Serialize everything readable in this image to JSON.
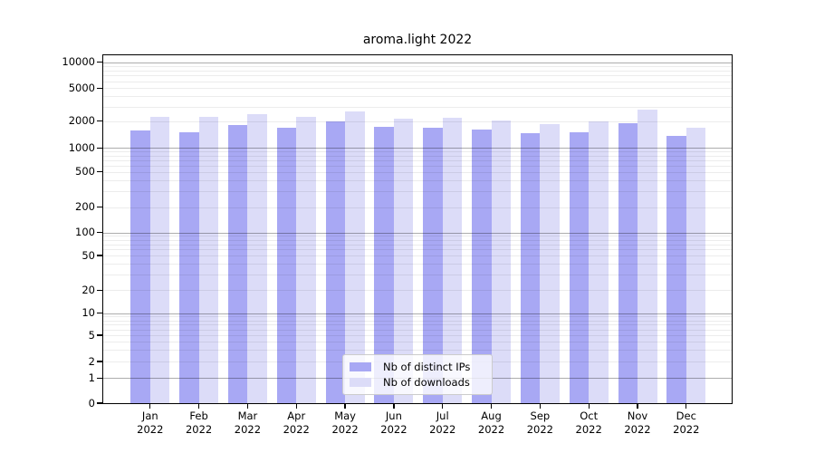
{
  "figure": {
    "background": "#ffffff"
  },
  "chart_data": {
    "type": "bar",
    "title": "aroma.light 2022",
    "xlabel": "",
    "ylabel": "",
    "yscale": "log (with 0 baseline tick)",
    "ylim": [
      0,
      10000
    ],
    "yticks": [
      0,
      1,
      2,
      5,
      10,
      20,
      50,
      100,
      200,
      500,
      1000,
      2000,
      5000,
      10000
    ],
    "grid": "horizontal log gridlines; decade lines darker",
    "legend_position": "inside bottom-center",
    "year": "2022",
    "categories": [
      "Jan",
      "Feb",
      "Mar",
      "Apr",
      "May",
      "Jun",
      "Jul",
      "Aug",
      "Sep",
      "Oct",
      "Nov",
      "Dec"
    ],
    "series": [
      {
        "name": "Nb of distinct IPs",
        "color": "#a8a8f4",
        "values": [
          1570,
          1500,
          1810,
          1700,
          2010,
          1740,
          1680,
          1610,
          1470,
          1510,
          1900,
          1380
        ]
      },
      {
        "name": "Nb of downloads",
        "color": "#dcdcf8",
        "values": [
          2230,
          2250,
          2430,
          2260,
          2630,
          2160,
          2180,
          2040,
          1850,
          1980,
          2790,
          1700
        ]
      }
    ]
  }
}
